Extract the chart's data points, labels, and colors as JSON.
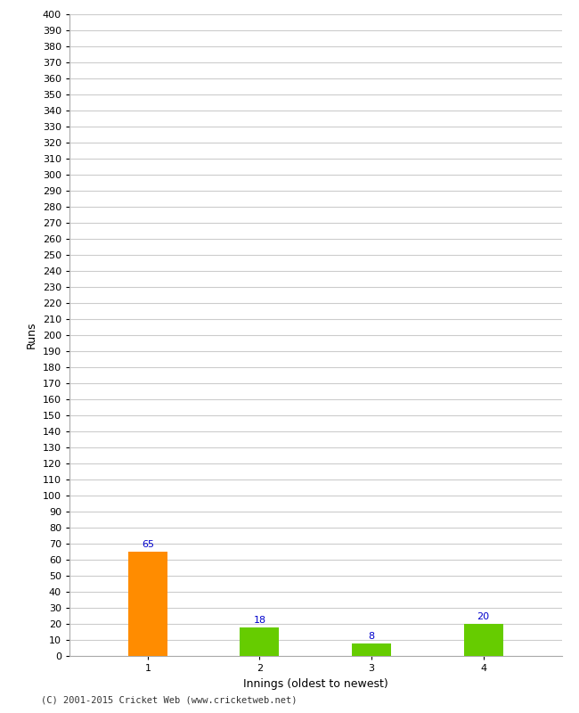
{
  "categories": [
    "1",
    "2",
    "3",
    "4"
  ],
  "values": [
    65,
    18,
    8,
    20
  ],
  "bar_colors": [
    "#ff8c00",
    "#66cc00",
    "#66cc00",
    "#66cc00"
  ],
  "xlabel": "Innings (oldest to newest)",
  "ylabel": "Runs",
  "ylim": [
    0,
    400
  ],
  "yticks": [
    0,
    10,
    20,
    30,
    40,
    50,
    60,
    70,
    80,
    90,
    100,
    110,
    120,
    130,
    140,
    150,
    160,
    170,
    180,
    190,
    200,
    210,
    220,
    230,
    240,
    250,
    260,
    270,
    280,
    290,
    300,
    310,
    320,
    330,
    340,
    350,
    360,
    370,
    380,
    390,
    400
  ],
  "label_color": "#0000cc",
  "label_fontsize": 8,
  "xlabel_fontsize": 9,
  "ylabel_fontsize": 9,
  "tick_fontsize": 8,
  "footer": "(C) 2001-2015 Cricket Web (www.cricketweb.net)",
  "background_color": "#ffffff",
  "grid_color": "#cccccc",
  "bar_width": 0.35
}
